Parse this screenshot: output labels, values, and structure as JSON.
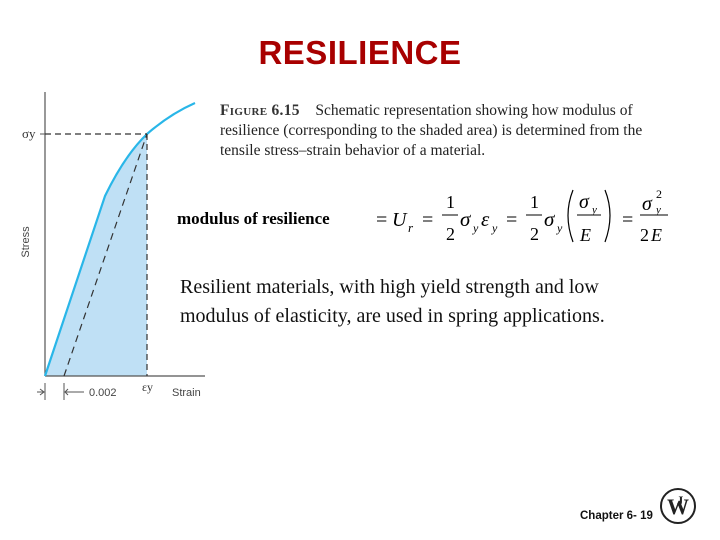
{
  "slide": {
    "title": "RESILIENCE",
    "footer": "Chapter 6- 19"
  },
  "figure": {
    "number": "Figure 6.15",
    "caption": "Schematic representation showing how modulus of resilience (corresponding to the shaded area) is determined from the tensile stress–strain behavior of a material.",
    "y_axis_label": "Stress",
    "x_axis_label": "Strain",
    "yield_stress_label": "σy",
    "yield_strain_label": "εy",
    "offset_label": "0.002",
    "colors": {
      "curve": "#29b6e8",
      "shaded_area": "#bfe0f5",
      "axis": "#555555"
    }
  },
  "equation": {
    "label": "modulus of resilience",
    "text": "= Ur = ½ σy εy = ½ σy (σy / E) = σy² / 2E"
  },
  "body": {
    "text": "Resilient materials, with high yield strength and low modulus of elasticity, are used in spring applications."
  },
  "logo": {
    "icon": "wiley-logo-icon"
  }
}
